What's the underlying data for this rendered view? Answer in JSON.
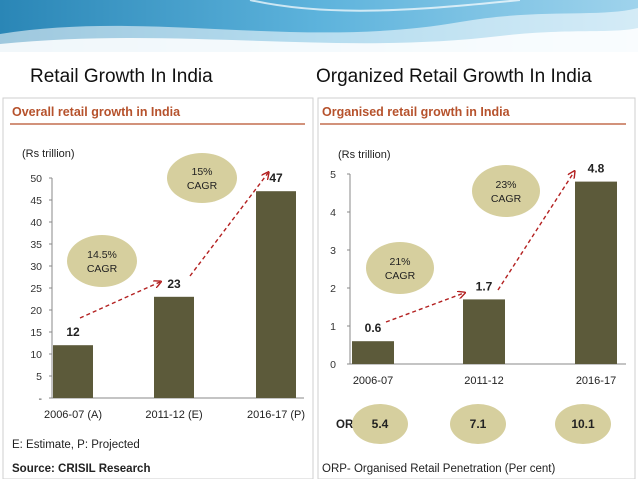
{
  "slide": {
    "left_heading": "Retail Growth In India",
    "right_heading": "Organized Retail Growth In India"
  },
  "colors": {
    "bar": "#5c5a3a",
    "bubble": "#d6cf9e",
    "arrow": "#b32020",
    "title": "#b6522c"
  },
  "chart_data": [
    {
      "type": "bar",
      "title": "Overall retail growth in India",
      "ylabel": "(Rs trillion)",
      "categories": [
        "2006-07 (A)",
        "2011-12 (E)",
        "2016-17 (P)"
      ],
      "values": [
        12,
        23,
        47
      ],
      "value_labels": [
        "12",
        "23",
        "47"
      ],
      "ylim": [
        0,
        50
      ],
      "yticks": [
        0,
        5,
        10,
        15,
        20,
        25,
        30,
        35,
        40,
        45,
        50
      ],
      "ytick_labels": [
        "-",
        "5",
        "10",
        "15",
        "20",
        "25",
        "30",
        "35",
        "40",
        "45",
        "50"
      ],
      "annotations": [
        {
          "line1": "14.5%",
          "line2": "CAGR"
        },
        {
          "line1": "15%",
          "line2": "CAGR"
        }
      ],
      "footnote": "E: Estimate, P: Projected",
      "source": "Source: CRISIL Research"
    },
    {
      "type": "bar",
      "title": "Organised retail growth in India",
      "ylabel": "(Rs trillion)",
      "categories": [
        "2006-07",
        "2011-12",
        "2016-17"
      ],
      "values": [
        0.6,
        1.7,
        4.8
      ],
      "value_labels": [
        "0.6",
        "1.7",
        "4.8"
      ],
      "ylim": [
        0,
        5
      ],
      "yticks": [
        0,
        1,
        2,
        3,
        4,
        5
      ],
      "ytick_labels": [
        "0",
        "1",
        "2",
        "3",
        "4",
        "5"
      ],
      "annotations": [
        {
          "line1": "21%",
          "line2": "CAGR"
        },
        {
          "line1": "23%",
          "line2": "CAGR"
        }
      ],
      "orp_label": "ORP",
      "orp_values": [
        "5.4",
        "7.1",
        "10.1"
      ],
      "footnote": "ORP- Organised Retail Penetration (Per cent)"
    }
  ]
}
